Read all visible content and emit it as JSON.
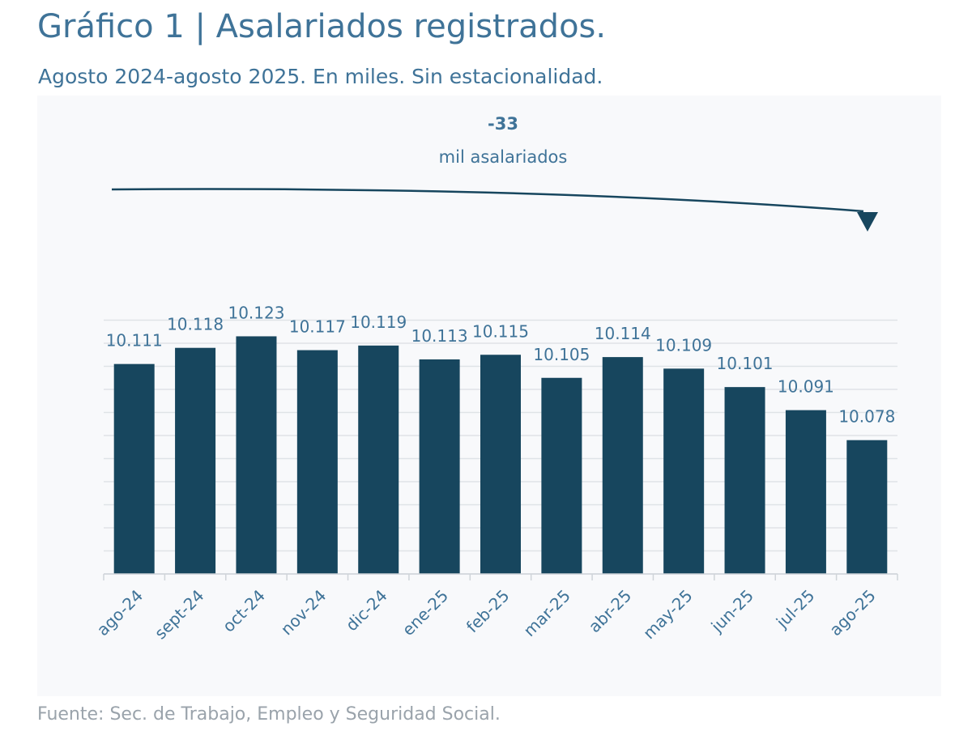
{
  "header": {
    "title": "Gráfico 1 | Asalariados registrados.",
    "subtitle": "Agosto 2024-agosto 2025. En miles. Sin estacionalidad."
  },
  "annotation": {
    "value": "-33",
    "text": "mil asalariados"
  },
  "footer": {
    "source": "Fuente: Sec. de Trabajo, Empleo y Seguridad Social."
  },
  "colors": {
    "bar": "#17465e",
    "title": "#3f7398",
    "label": "#3f7398",
    "grid": "#dfe3e7",
    "background": "#f8f9fb",
    "source": "#9aa3ab"
  },
  "chart_data": {
    "type": "bar",
    "categories": [
      "ago-24",
      "sept-24",
      "oct-24",
      "nov-24",
      "dic-24",
      "ene-25",
      "feb-25",
      "mar-25",
      "abr-25",
      "may-25",
      "jun-25",
      "jul-25",
      "ago-25"
    ],
    "values": [
      10111,
      10118,
      10123,
      10117,
      10119,
      10113,
      10115,
      10105,
      10114,
      10109,
      10101,
      10091,
      10078
    ],
    "data_labels": [
      "10.111",
      "10.118",
      "10.123",
      "10.117",
      "10.119",
      "10.113",
      "10.115",
      "10.105",
      "10.114",
      "10.109",
      "10.101",
      "10.091",
      "10.078"
    ],
    "ylim": [
      10020,
      10135
    ],
    "grid": true,
    "legend": "none"
  }
}
